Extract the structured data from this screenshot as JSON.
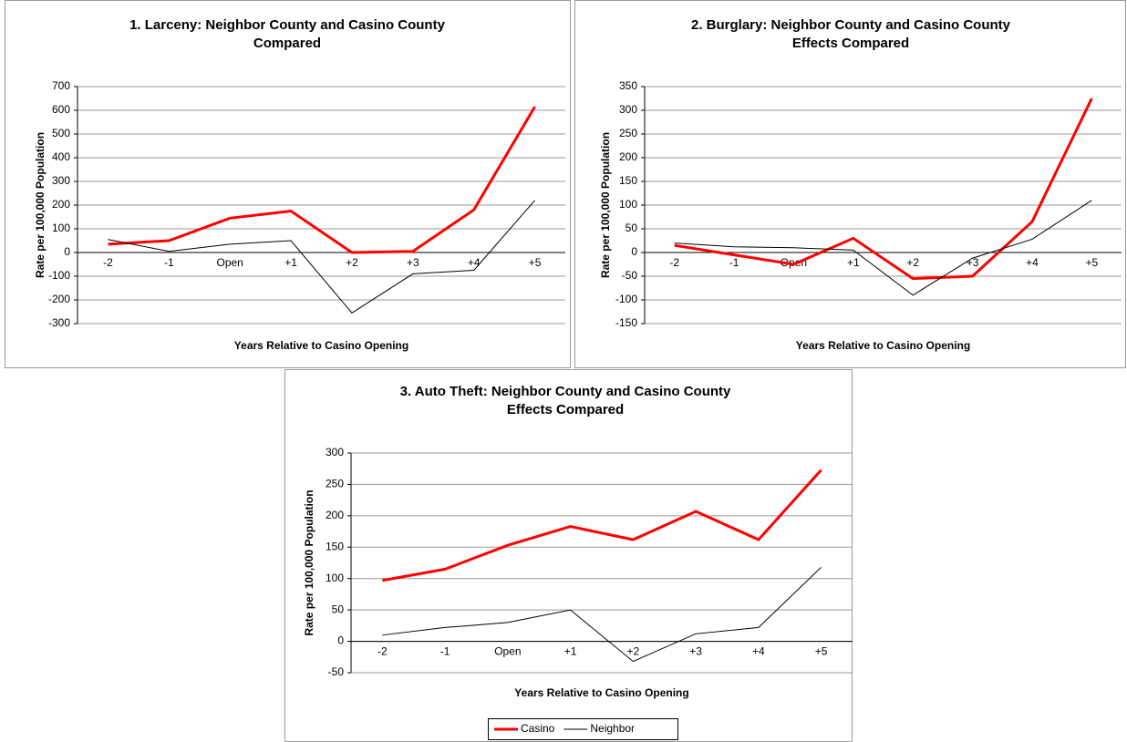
{
  "chart_data": [
    {
      "type": "line",
      "title": [
        "1.  Larceny:  Neighbor County and Casino County",
        "Compared"
      ],
      "x_label": "Years Relative to Casino Opening",
      "y_label": "Rate per 100,000 Population",
      "categories": [
        "-2",
        "-1",
        "Open",
        "+1",
        "+2",
        "+3",
        "+4",
        "+5"
      ],
      "series": [
        {
          "color": "#ff0000",
          "values": [
            35,
            50,
            145,
            175,
            0,
            5,
            180,
            615
          ]
        },
        {
          "color": "#000000",
          "values": [
            55,
            5,
            35,
            50,
            -255,
            -90,
            -75,
            220
          ]
        }
      ],
      "ylim": [
        -300,
        700
      ],
      "yticks": [
        -300,
        -200,
        -100,
        0,
        100,
        200,
        300,
        400,
        500,
        600,
        700
      ],
      "grid": true,
      "legend": false
    },
    {
      "type": "line",
      "title": [
        "2.  Burglary:  Neighbor County and Casino County",
        "Effects Compared"
      ],
      "x_label": "Years Relative to Casino Opening",
      "y_label": "Rate per 100,000 Population",
      "categories": [
        "-2",
        "-1",
        "Open",
        "+1",
        "+2",
        "+3",
        "+4",
        "+5"
      ],
      "series": [
        {
          "color": "#ff0000",
          "values": [
            15,
            -5,
            -25,
            30,
            -55,
            -50,
            65,
            325
          ]
        },
        {
          "color": "#000000",
          "values": [
            20,
            12,
            10,
            5,
            -90,
            -12,
            28,
            110
          ]
        }
      ],
      "ylim": [
        -150,
        350
      ],
      "yticks": [
        -150,
        -100,
        -50,
        0,
        50,
        100,
        150,
        200,
        250,
        300,
        350
      ],
      "grid": true,
      "legend": false
    },
    {
      "type": "line",
      "title": [
        "3.  Auto Theft:  Neighbor County and Casino County",
        "Effects Compared"
      ],
      "x_label": "Years Relative to Casino Opening",
      "y_label": "Rate per 100,000 Population",
      "categories": [
        "-2",
        "-1",
        "Open",
        "+1",
        "+2",
        "+3",
        "+4",
        "+5"
      ],
      "series": [
        {
          "name": "Casino",
          "color": "#ff0000",
          "values": [
            97,
            115,
            153,
            183,
            162,
            207,
            162,
            273
          ]
        },
        {
          "name": "Neighbor",
          "color": "#000000",
          "values": [
            10,
            22,
            30,
            50,
            -32,
            12,
            22,
            118
          ]
        }
      ],
      "ylim": [
        -50,
        300
      ],
      "yticks": [
        -50,
        0,
        50,
        100,
        150,
        200,
        250,
        300
      ],
      "grid": true,
      "legend": "bottom"
    }
  ]
}
